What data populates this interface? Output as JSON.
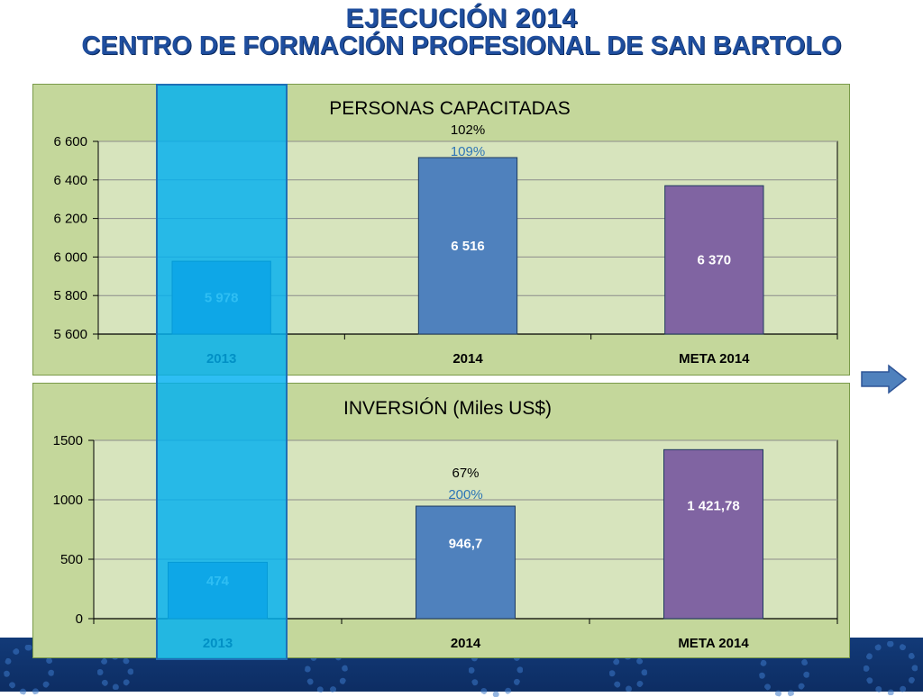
{
  "title": {
    "line1": "EJECUCIÓN 2014",
    "line2": "CENTRO DE FORMACIÓN PROFESIONAL DE SAN BARTOLO"
  },
  "colors": {
    "panel_bg": "#c4d79b",
    "plot_bg": "#d7e4bd",
    "bar_2013": "#4f81bd",
    "bar_2014": "#4f81bd",
    "bar_meta": "#8064a2",
    "highlight": "#00b0f0",
    "pct_primary": "#000000",
    "pct_secondary": "#2e75b6"
  },
  "chart_data": [
    {
      "type": "bar",
      "title": "PERSONAS CAPACITADAS",
      "categories": [
        "2013",
        "2014",
        "META 2014"
      ],
      "values": [
        5978,
        6516,
        6370
      ],
      "value_labels": [
        "5 978",
        "6 516",
        "6 370"
      ],
      "bar_colors": [
        "#4f81bd",
        "#4f81bd",
        "#8064a2"
      ],
      "ylim": [
        5600,
        6600
      ],
      "yticks": [
        5600,
        5800,
        6000,
        6200,
        6400,
        6600
      ],
      "ytick_labels": [
        "5 600",
        "5 800",
        "6 000",
        "6 200",
        "6 400",
        "6 600"
      ],
      "grid": true,
      "annotations": [
        {
          "category": "2014",
          "text": "102%",
          "color": "#000000"
        },
        {
          "category": "2014",
          "text": "109%",
          "color": "#2e75b6"
        }
      ]
    },
    {
      "type": "bar",
      "title": "INVERSIÓN (Miles US$)",
      "categories": [
        "2013",
        "2014",
        "META 2014"
      ],
      "values": [
        474,
        946.7,
        1421.78
      ],
      "value_labels": [
        "474",
        "946,7",
        "1 421,78"
      ],
      "bar_colors": [
        "#4f81bd",
        "#4f81bd",
        "#8064a2"
      ],
      "ylim": [
        0,
        1500
      ],
      "yticks": [
        0,
        500,
        1000,
        1500
      ],
      "ytick_labels": [
        "0",
        "500",
        "1000",
        "1500"
      ],
      "grid": true,
      "annotations": [
        {
          "category": "2014",
          "text": "67%",
          "color": "#000000"
        },
        {
          "category": "2014",
          "text": "200%",
          "color": "#2e75b6"
        }
      ]
    }
  ],
  "icons": {
    "next": "arrow-right-icon"
  }
}
